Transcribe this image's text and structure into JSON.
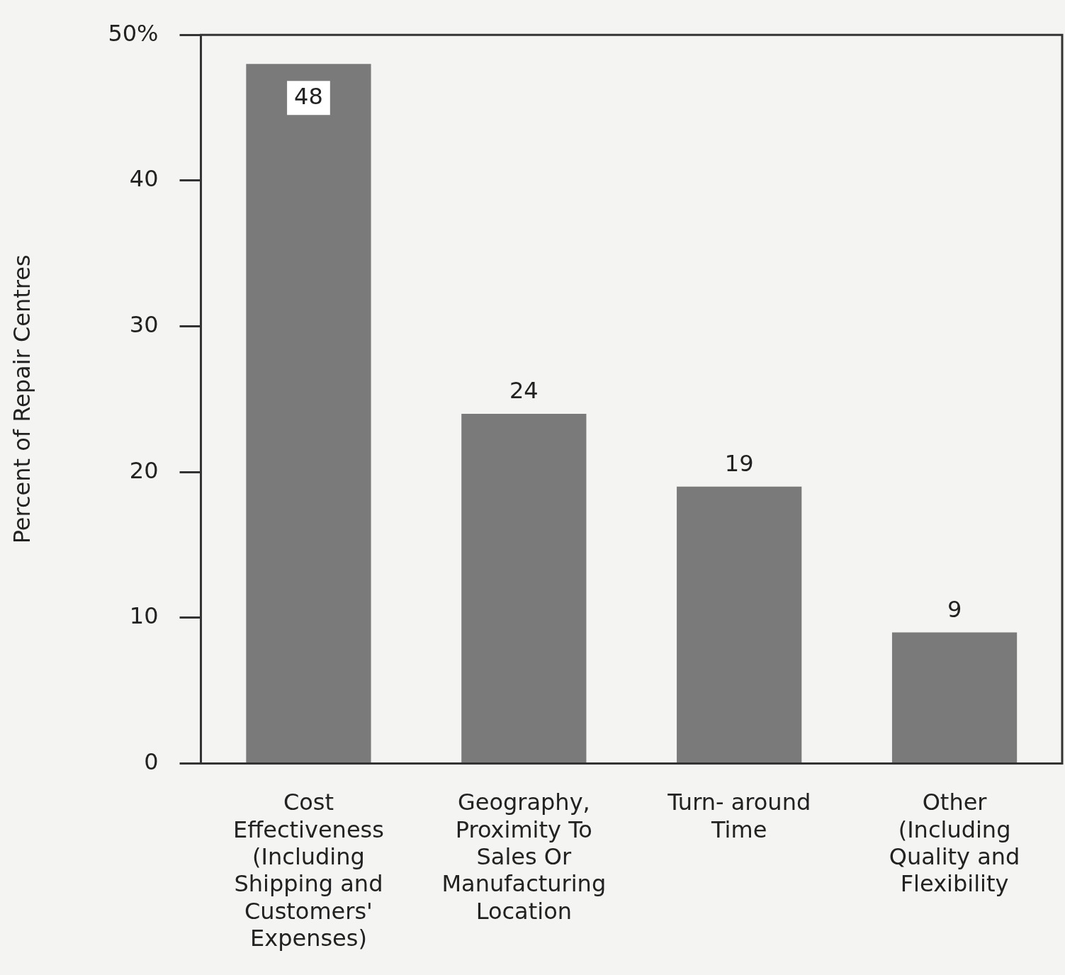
{
  "chart_data": {
    "type": "bar",
    "ylabel": "Percent of Repair Centres",
    "categories": [
      "Cost Effectiveness (Including Shipping and Customers' Expenses)",
      "Geography, Proximity To Sales Or Manufacturing Location",
      "Turn- around Time",
      "Other (Including Quality and Flexibility"
    ],
    "values": [
      48,
      24,
      19,
      9
    ],
    "color": "#7a7a7a",
    "ylim": [
      0,
      50
    ],
    "yticks": [
      0,
      10,
      20,
      30,
      40,
      {
        "value": 50,
        "label": "50%"
      }
    ],
    "grid": false,
    "legend": false,
    "data_labels": true
  }
}
